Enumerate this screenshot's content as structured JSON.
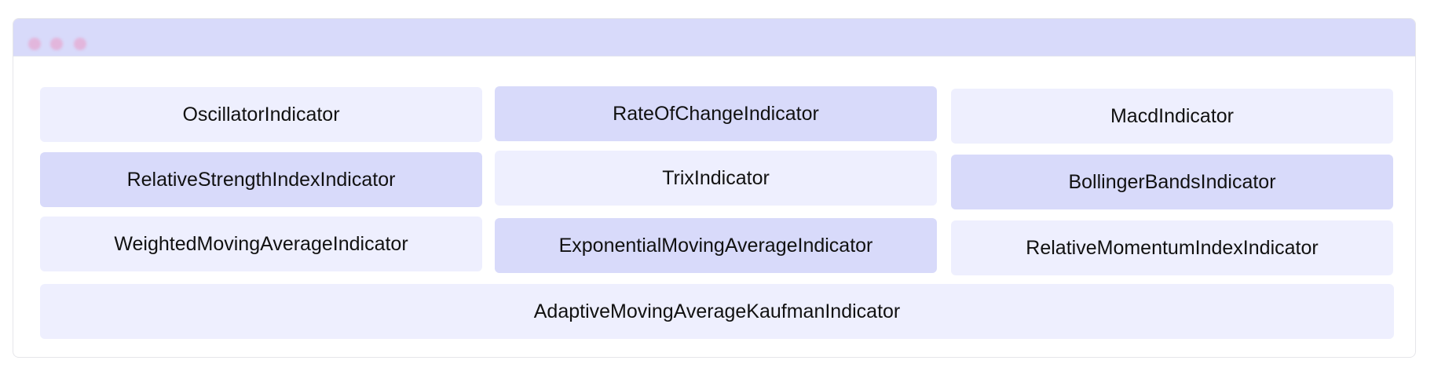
{
  "window": {
    "controls": [
      "close",
      "minimize",
      "maximize"
    ]
  },
  "colors": {
    "titlebar": "#d8dafa",
    "tile_light": "#eeeffe",
    "tile_dark": "#d8dafa",
    "dots": "#e2b6dc"
  },
  "tiles": [
    {
      "label": "OscillatorIndicator"
    },
    {
      "label": "RateOfChangeIndicator"
    },
    {
      "label": "MacdIndicator"
    },
    {
      "label": "RelativeStrengthIndexIndicator"
    },
    {
      "label": "TrixIndicator"
    },
    {
      "label": "BollingerBandsIndicator"
    },
    {
      "label": "WeightedMovingAverageIndicator"
    },
    {
      "label": "ExponentialMovingAverageIndicator"
    },
    {
      "label": "RelativeMomentumIndexIndicator"
    },
    {
      "label": "AdaptiveMovingAverageKaufmanIndicator"
    }
  ]
}
